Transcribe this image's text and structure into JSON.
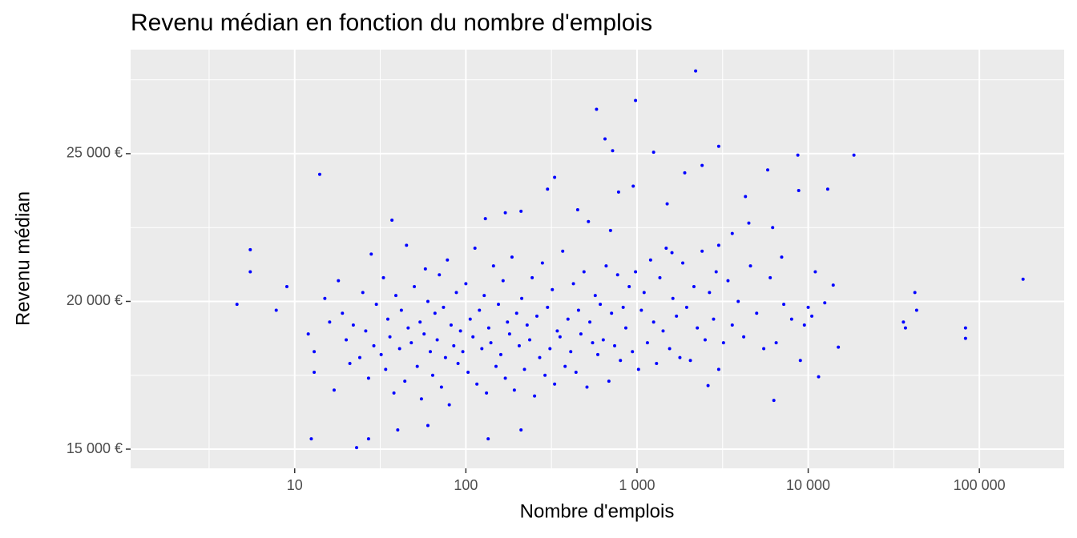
{
  "chart_data": {
    "type": "scatter",
    "title": "Revenu médian en fonction du nombre d'emplois",
    "x_label": "Nombre d'emplois",
    "y_label": "Revenu médian",
    "x_scale": "log",
    "grid": true,
    "color": "#0000ff",
    "xlim": [
      1.1,
      313000
    ],
    "ylim": [
      14350,
      28520
    ],
    "xticks": [
      10,
      100,
      {
        "value": 1000,
        "label": "1 000"
      },
      {
        "value": 10000,
        "label": "10 000"
      },
      {
        "value": 100000,
        "label": "100 000"
      }
    ],
    "yticks": [
      {
        "value": 15000,
        "label": "15 000  €"
      },
      {
        "value": 20000,
        "label": "20 000  €"
      },
      {
        "value": 25000,
        "label": "25 000  €"
      }
    ],
    "x": [
      4.6,
      5.5,
      5.5,
      7.8,
      9,
      14,
      12.5,
      23,
      37,
      580,
      980,
      2200,
      650,
      720,
      1250,
      3000,
      8700,
      18500,
      5800,
      13000,
      8800,
      42000,
      43000,
      36000,
      37000,
      83000,
      83000,
      180000,
      15000,
      11500,
      6300,
      27,
      135,
      210,
      40,
      60,
      2600,
      3000,
      9000,
      12500,
      11000,
      14000,
      10000,
      10500,
      7000,
      6200,
      4500,
      2400,
      1900,
      1500,
      330,
      300,
      950,
      780,
      170,
      210,
      450,
      520,
      130,
      700,
      4300,
      3600,
      1600,
      2900,
      12,
      13,
      13,
      15,
      16,
      17,
      18,
      19,
      20,
      21,
      22,
      24,
      25,
      26,
      27,
      28,
      29,
      30,
      32,
      33,
      34,
      35,
      36,
      38,
      39,
      41,
      42,
      44,
      45,
      46,
      48,
      50,
      52,
      54,
      55,
      57,
      58,
      60,
      62,
      64,
      66,
      68,
      70,
      72,
      74,
      76,
      78,
      80,
      82,
      85,
      88,
      90,
      93,
      96,
      100,
      103,
      106,
      110,
      113,
      116,
      120,
      124,
      128,
      132,
      136,
      140,
      145,
      150,
      155,
      160,
      165,
      170,
      175,
      180,
      186,
      192,
      198,
      205,
      212,
      220,
      228,
      236,
      244,
      252,
      260,
      270,
      280,
      290,
      300,
      310,
      320,
      330,
      342,
      355,
      368,
      380,
      395,
      410,
      425,
      440,
      455,
      470,
      490,
      510,
      530,
      550,
      570,
      590,
      610,
      635,
      660,
      685,
      710,
      740,
      770,
      800,
      830,
      860,
      900,
      940,
      980,
      1020,
      1060,
      1100,
      1150,
      1200,
      1250,
      1300,
      1360,
      1420,
      1480,
      1550,
      1620,
      1700,
      1780,
      1850,
      1950,
      2050,
      2150,
      2250,
      2400,
      2500,
      2650,
      2800,
      3000,
      3200,
      3400,
      3600,
      3900,
      4200,
      4600,
      5000,
      5500,
      6000,
      6500,
      7200,
      8000,
      9500
    ],
    "values": [
      19900,
      21750,
      21000,
      19700,
      20500,
      24300,
      15350,
      15050,
      22750,
      26500,
      26800,
      27800,
      25500,
      25100,
      25050,
      25250,
      24950,
      24950,
      24450,
      23800,
      23750,
      20300,
      19700,
      19300,
      19100,
      19100,
      18750,
      20750,
      18450,
      17450,
      16650,
      15350,
      15350,
      15650,
      15650,
      15800,
      17150,
      17700,
      18000,
      19950,
      21000,
      20550,
      19800,
      19500,
      21500,
      22500,
      22650,
      24600,
      24350,
      23300,
      24200,
      23800,
      23900,
      23700,
      23000,
      23050,
      23100,
      22700,
      22800,
      22400,
      23550,
      22300,
      21650,
      21000,
      18900,
      17600,
      18300,
      20100,
      19300,
      17000,
      20700,
      19600,
      18700,
      17900,
      19200,
      18100,
      20300,
      19000,
      17400,
      21600,
      18500,
      19900,
      18200,
      20800,
      17700,
      19400,
      18800,
      16900,
      20200,
      18400,
      19700,
      17300,
      21900,
      19100,
      18600,
      20500,
      17800,
      19300,
      16700,
      18900,
      21100,
      20000,
      18300,
      17500,
      19600,
      18700,
      20900,
      17100,
      19800,
      18100,
      21400,
      16500,
      19200,
      18500,
      20300,
      17900,
      19000,
      18300,
      20600,
      17600,
      19400,
      18800,
      21800,
      17200,
      19700,
      18400,
      20200,
      16900,
      19100,
      18600,
      21200,
      17800,
      19900,
      18200,
      20700,
      17400,
      19300,
      18900,
      21500,
      17000,
      19600,
      18500,
      20100,
      17700,
      19200,
      18700,
      20800,
      16800,
      19500,
      18100,
      21300,
      17500,
      19800,
      18400,
      20400,
      17200,
      19000,
      18800,
      21700,
      17800,
      19400,
      18300,
      20600,
      17600,
      19700,
      18900,
      21000,
      17100,
      19300,
      18600,
      20200,
      18200,
      19900,
      18700,
      21200,
      17300,
      19600,
      18500,
      20900,
      18000,
      19800,
      19100,
      20500,
      18300,
      21000,
      17700,
      19700,
      20300,
      18600,
      21400,
      19300,
      17900,
      20800,
      19000,
      21800,
      18400,
      20100,
      19500,
      18100,
      21300,
      19800,
      18000,
      20500,
      19100,
      21700,
      18700,
      20300,
      19400,
      21900,
      18600,
      20700,
      19200,
      20000,
      18800,
      21200,
      19600,
      18400,
      20800,
      18600,
      19900,
      19400,
      19200
    ]
  }
}
